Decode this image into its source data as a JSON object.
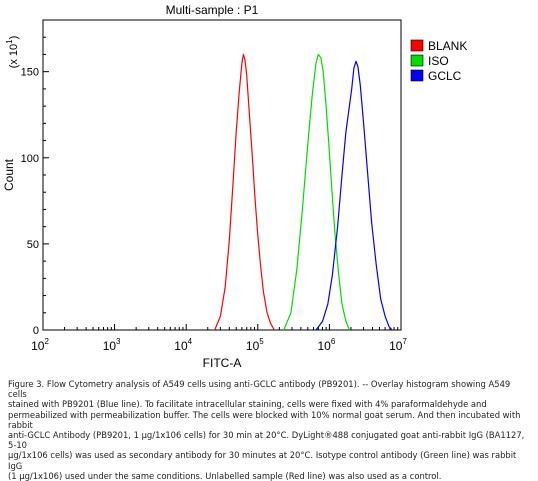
{
  "chart_data": {
    "type": "line",
    "title": "Multi-sample : P1",
    "xlabel": "FITC-A",
    "ylabel": "Count",
    "y_multiplier_label": "(x 10",
    "y_multiplier_exp": "1",
    "y_multiplier_close": ")",
    "xscale": "log",
    "xlim": [
      100,
      10000000
    ],
    "ylim": [
      0,
      180
    ],
    "xticks": [
      {
        "base": "10",
        "exp": "2",
        "value": 100
      },
      {
        "base": "10",
        "exp": "3",
        "value": 1000
      },
      {
        "base": "10",
        "exp": "4",
        "value": 10000
      },
      {
        "base": "10",
        "exp": "5",
        "value": 100000
      },
      {
        "base": "10",
        "exp": "6",
        "value": 1000000
      },
      {
        "base": "10",
        "exp": "7",
        "value": 10000000
      }
    ],
    "yticks": [
      {
        "label": "0",
        "value": 0
      },
      {
        "label": "50",
        "value": 50
      },
      {
        "label": "100",
        "value": 100
      },
      {
        "label": "150",
        "value": 150
      }
    ],
    "legend_position": "top-right",
    "series": [
      {
        "name": "BLANK",
        "color": "#ff0000",
        "points": [
          [
            25000,
            0
          ],
          [
            30000,
            8
          ],
          [
            35000,
            25
          ],
          [
            40000,
            52
          ],
          [
            45000,
            85
          ],
          [
            50000,
            115
          ],
          [
            55000,
            138
          ],
          [
            60000,
            155
          ],
          [
            63000,
            160
          ],
          [
            66000,
            157
          ],
          [
            70000,
            148
          ],
          [
            76000,
            126
          ],
          [
            84000,
            100
          ],
          [
            92000,
            75
          ],
          [
            100000,
            55
          ],
          [
            110000,
            36
          ],
          [
            120000,
            22
          ],
          [
            135000,
            10
          ],
          [
            150000,
            4
          ],
          [
            170000,
            0
          ]
        ]
      },
      {
        "name": "ISO",
        "color": "#00dd00",
        "points": [
          [
            230000,
            0
          ],
          [
            290000,
            10
          ],
          [
            350000,
            35
          ],
          [
            420000,
            70
          ],
          [
            500000,
            108
          ],
          [
            580000,
            138
          ],
          [
            650000,
            155
          ],
          [
            700000,
            160
          ],
          [
            760000,
            158
          ],
          [
            820000,
            150
          ],
          [
            900000,
            130
          ],
          [
            980000,
            108
          ],
          [
            1080000,
            82
          ],
          [
            1200000,
            55
          ],
          [
            1350000,
            32
          ],
          [
            1500000,
            15
          ],
          [
            1700000,
            5
          ],
          [
            1900000,
            0
          ]
        ]
      },
      {
        "name": "GCLC",
        "color": "#0000ff",
        "points": [
          [
            650000,
            0
          ],
          [
            800000,
            5
          ],
          [
            950000,
            15
          ],
          [
            1100000,
            32
          ],
          [
            1300000,
            60
          ],
          [
            1500000,
            90
          ],
          [
            1700000,
            115
          ],
          [
            1900000,
            130
          ],
          [
            2050000,
            140
          ],
          [
            2200000,
            152
          ],
          [
            2350000,
            156
          ],
          [
            2500000,
            153
          ],
          [
            2700000,
            142
          ],
          [
            3000000,
            120
          ],
          [
            3400000,
            92
          ],
          [
            3900000,
            62
          ],
          [
            4500000,
            38
          ],
          [
            5200000,
            18
          ],
          [
            6000000,
            8
          ],
          [
            6800000,
            2
          ],
          [
            7500000,
            0
          ]
        ]
      }
    ]
  },
  "caption_lines": [
    "Figure 3. Flow Cytometry analysis of A549 cells using anti-GCLC antibody (PB9201).  -- Overlay histogram showing A549 cells",
    "stained with PB9201 (Blue line). To facilitate intracellular staining, cells were fixed with 4% paraformaldehyde and",
    "permeabilized with permeabilization buffer. The cells were blocked with 10% normal goat serum.  And then incubated with rabbit",
    "anti-GCLC Antibody (PB9201, 1 µg/1x106 cells) for 30 min at 20°C. DyLight®488 conjugated goat anti-rabbit IgG (BA1127, 5-10",
    "µg/1x106 cells) was used as secondary antibody for 30 minutes at 20°C. Isotype control antibody (Green line) was rabbit IgG",
    "(1 µg/1x106) used under the same conditions. Unlabelled sample (Red line) was also used as a control."
  ]
}
